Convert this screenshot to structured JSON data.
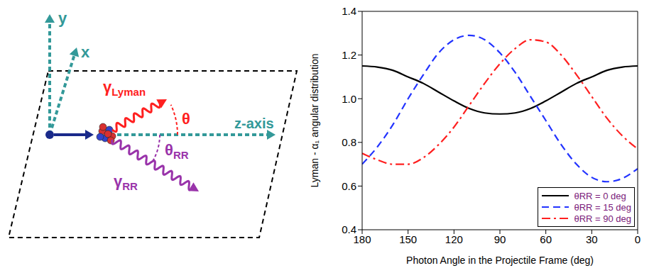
{
  "diagram": {
    "axes": {
      "y": "y",
      "x": "x",
      "z": "z-axis"
    },
    "lyman_photon": {
      "symbol": "γ",
      "subscript": "Lyman"
    },
    "lyman_angle": {
      "symbol": "θ"
    },
    "rr_photon": {
      "symbol": "γ",
      "subscript": "RR"
    },
    "rr_angle": {
      "symbol": "θ",
      "subscript": "RR"
    }
  },
  "chart_data": {
    "type": "line",
    "x_label": "Photon Angle in the Projectile Frame (deg)",
    "y_label": "Lyman - α₁ angular distribution",
    "x": [
      180,
      170,
      160,
      150,
      140,
      130,
      120,
      110,
      100,
      90,
      80,
      70,
      60,
      50,
      40,
      30,
      20,
      10,
      0
    ],
    "xlim": [
      180,
      0
    ],
    "xticks": [
      180,
      150,
      120,
      90,
      60,
      30,
      0
    ],
    "ylim": [
      0.4,
      1.4
    ],
    "yticks": [
      0.4,
      0.6,
      0.8,
      {
        "value": 1,
        "label": "1.0"
      },
      1.2,
      1.4
    ],
    "legend": "lower right",
    "series": [
      {
        "name": "θRR = 0 deg",
        "color": "#000000",
        "line_style": "solid",
        "values": [
          1.15,
          1.145,
          1.13,
          1.1,
          1.07,
          1.03,
          0.99,
          0.955,
          0.935,
          0.93,
          0.935,
          0.955,
          0.99,
          1.03,
          1.07,
          1.1,
          1.13,
          1.145,
          1.15
        ]
      },
      {
        "name": "θRR = 15 deg",
        "color": "#2233ff",
        "line_style": "dashed",
        "values": [
          0.7,
          0.78,
          0.88,
          1.0,
          1.11,
          1.21,
          1.27,
          1.29,
          1.27,
          1.21,
          1.12,
          1.01,
          0.9,
          0.79,
          0.7,
          0.64,
          0.62,
          0.635,
          0.68
        ]
      },
      {
        "name": "θRR = 90 deg",
        "color": "#ff2020",
        "line_style": "dashdot",
        "values": [
          0.75,
          0.72,
          0.7,
          0.7,
          0.73,
          0.79,
          0.87,
          0.97,
          1.07,
          1.16,
          1.23,
          1.27,
          1.26,
          1.2,
          1.11,
          1.01,
          0.91,
          0.83,
          0.77
        ]
      }
    ]
  }
}
